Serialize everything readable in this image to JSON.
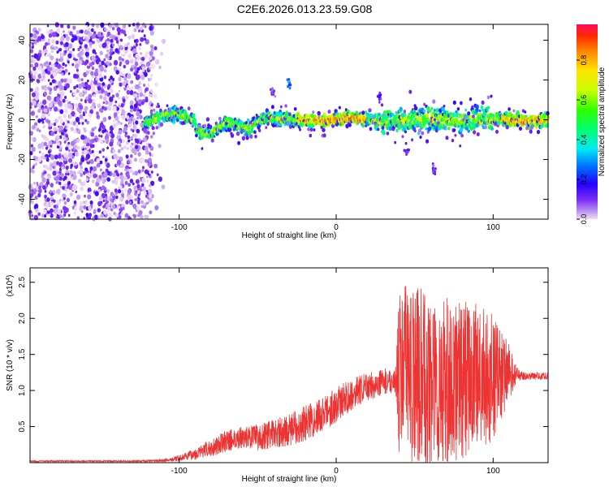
{
  "title": "C2E6.2026.013.23.59.G08",
  "chart_data": [
    {
      "type": "heatmap",
      "xlabel": "Height of straight line (km)",
      "ylabel": "Frequency (Hz)",
      "xlim": [
        -195,
        135
      ],
      "ylim": [
        -50,
        48
      ],
      "xticks": [
        -100,
        0,
        100
      ],
      "yticks": [
        -40,
        -20,
        0,
        20,
        40
      ],
      "colorbar": {
        "label": "Normalized spectral amplitude",
        "range": [
          0,
          0.98
        ],
        "ticks": [
          "0.0",
          "0.2",
          "0.4",
          "0.6",
          "0.8"
        ]
      }
    },
    {
      "type": "line",
      "color": "#ee3333",
      "xlabel": "Height of straight line (km)",
      "ylabel": "SNR (10 * v/v)",
      "multiplier": "(x10^4)",
      "multiplier_base": "(x10",
      "multiplier_exp": "4",
      "multiplier_close": ")",
      "xlim": [
        -195,
        135
      ],
      "ylim": [
        0,
        2.7
      ],
      "xticks": [
        -100,
        0,
        100
      ],
      "yticks": [
        "0.5",
        "1.0",
        "1.5",
        "2.0",
        "2.5"
      ],
      "envelope": {
        "x": [
          -195,
          -130,
          -110,
          -100,
          -90,
          -80,
          -70,
          -60,
          -50,
          -40,
          -30,
          -20,
          -10,
          0,
          10,
          20,
          30,
          38,
          40,
          45,
          50,
          60,
          70,
          80,
          90,
          100,
          110,
          115,
          120,
          135
        ],
        "mean": [
          0.02,
          0.02,
          0.03,
          0.06,
          0.12,
          0.2,
          0.3,
          0.35,
          0.35,
          0.4,
          0.45,
          0.55,
          0.65,
          0.8,
          0.95,
          1.05,
          1.12,
          1.15,
          1.25,
          1.3,
          1.2,
          1.1,
          1.1,
          1.15,
          1.2,
          1.15,
          1.25,
          1.22,
          1.2,
          1.2
        ],
        "amp": [
          0.01,
          0.01,
          0.02,
          0.04,
          0.08,
          0.12,
          0.15,
          0.15,
          0.18,
          0.2,
          0.22,
          0.25,
          0.25,
          0.25,
          0.22,
          0.2,
          0.18,
          0.18,
          1.1,
          1.2,
          1.3,
          1.2,
          1.2,
          1.1,
          1.0,
          0.9,
          0.4,
          0.1,
          0.05,
          0.05
        ]
      }
    }
  ]
}
